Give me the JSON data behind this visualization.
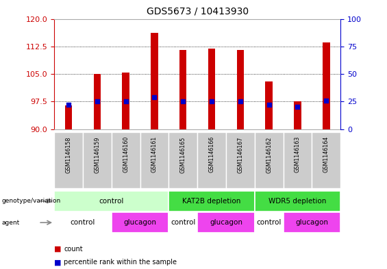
{
  "title": "GDS5673 / 10413930",
  "samples": [
    "GSM1146158",
    "GSM1146159",
    "GSM1146160",
    "GSM1146161",
    "GSM1146165",
    "GSM1146166",
    "GSM1146167",
    "GSM1146162",
    "GSM1146163",
    "GSM1146164"
  ],
  "count_values": [
    96.5,
    105.0,
    105.3,
    116.2,
    111.5,
    111.9,
    111.5,
    103.0,
    97.5,
    113.5
  ],
  "percentile_values": [
    22,
    25,
    25,
    29,
    25,
    25,
    25,
    22,
    20,
    26
  ],
  "ylim_left": [
    90,
    120
  ],
  "ylim_right": [
    0,
    100
  ],
  "yticks_left": [
    90,
    97.5,
    105,
    112.5,
    120
  ],
  "yticks_right": [
    0,
    25,
    50,
    75,
    100
  ],
  "left_color": "#cc0000",
  "right_color": "#0000cc",
  "bar_color": "#cc0000",
  "dot_color": "#0000cc",
  "bar_width": 0.25,
  "genotype_light_green": "#ccffcc",
  "genotype_dark_green": "#44dd44",
  "agent_white": "#ffffff",
  "agent_magenta": "#ee44ee",
  "sample_bg_color": "#cccccc"
}
